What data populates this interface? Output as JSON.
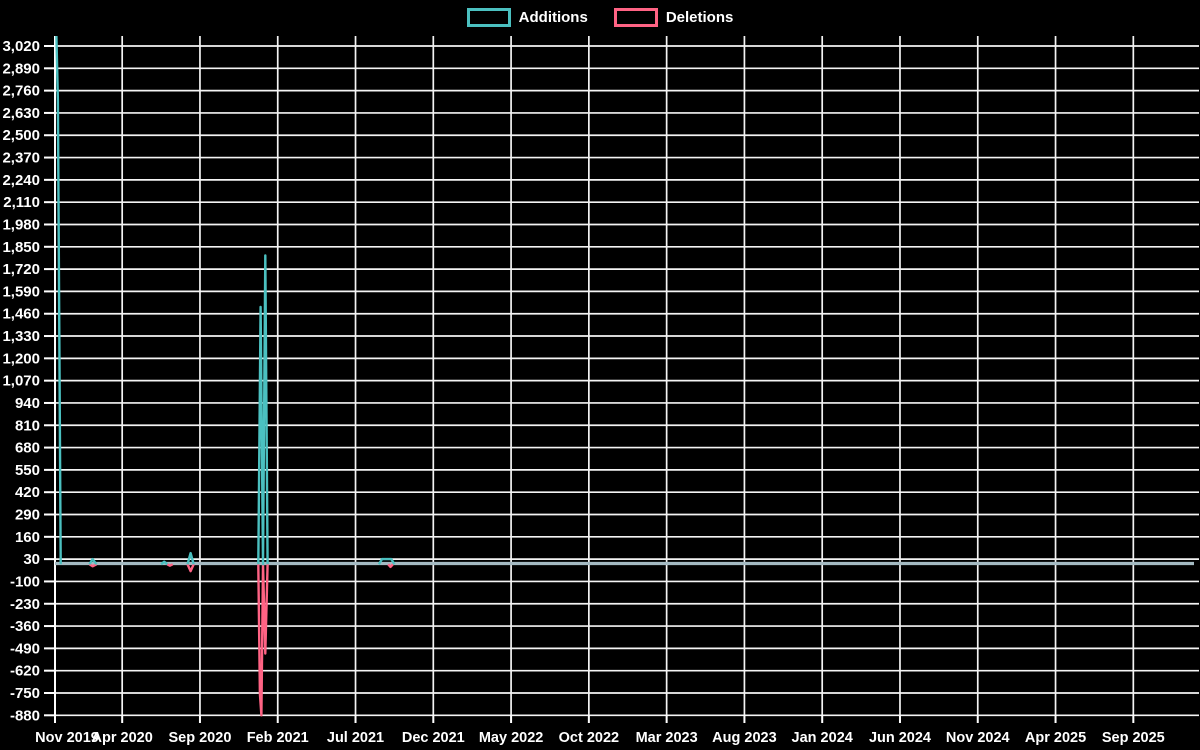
{
  "chart_data": {
    "type": "line",
    "title": "",
    "legend": [
      "Additions",
      "Deletions"
    ],
    "legend_position": "top",
    "background_color": "#000000",
    "grid": true,
    "grid_color": "#ffffff",
    "text_color": "#ffffff",
    "zero_line_color": "#a4bac2",
    "x_axis": {
      "unit": "months since Nov 2019",
      "ticks": [
        {
          "m": 0,
          "label": "Nov 2019"
        },
        {
          "m": 5,
          "label": "Apr 2020"
        },
        {
          "m": 10,
          "label": "Sep 2020"
        },
        {
          "m": 15,
          "label": "Feb 2021"
        },
        {
          "m": 20,
          "label": "Jul 2021"
        },
        {
          "m": 25,
          "label": "Dec 2021"
        },
        {
          "m": 30,
          "label": "May 2022"
        },
        {
          "m": 35,
          "label": "Oct 2022"
        },
        {
          "m": 40,
          "label": "Mar 2023"
        },
        {
          "m": 45,
          "label": "Aug 2023"
        },
        {
          "m": 50,
          "label": "Jan 2024"
        },
        {
          "m": 55,
          "label": "Jun 2024"
        },
        {
          "m": 60,
          "label": "Nov 2024"
        },
        {
          "m": 65,
          "label": "Apr 2025"
        },
        {
          "m": 70,
          "label": "Sep 2025"
        }
      ]
    },
    "y_axis": {
      "max_tick": 3020,
      "min_tick": -880,
      "step": 130,
      "plot_top_value": 3078,
      "ticks": [
        3020,
        2890,
        2760,
        2630,
        2500,
        2370,
        2240,
        2110,
        1980,
        1850,
        1720,
        1590,
        1460,
        1330,
        1200,
        1070,
        940,
        810,
        680,
        550,
        420,
        290,
        160,
        30,
        -100,
        -230,
        -360,
        -490,
        -620,
        -750,
        -880
      ]
    },
    "series": [
      {
        "name": "Additions",
        "color": "#4bc0c0",
        "baseline": 0,
        "spikes": [
          [
            [
              0.77,
              3078
            ],
            [
              0.87,
              2700
            ],
            [
              1.05,
              0
            ]
          ],
          [
            [
              2.9,
              0
            ],
            [
              3.1,
              30
            ],
            [
              3.35,
              0
            ]
          ],
          [
            [
              7.5,
              0
            ],
            [
              7.7,
              15
            ],
            [
              7.9,
              0
            ]
          ],
          [
            [
              9.2,
              0
            ],
            [
              9.4,
              65
            ],
            [
              9.6,
              0
            ]
          ],
          [
            [
              13.75,
              0
            ],
            [
              13.9,
              1500
            ],
            [
              14.05,
              0
            ],
            [
              14.2,
              1800
            ],
            [
              14.35,
              0
            ]
          ],
          [
            [
              21.5,
              0
            ],
            [
              21.7,
              30
            ],
            [
              22.3,
              30
            ],
            [
              22.5,
              0
            ]
          ]
        ]
      },
      {
        "name": "Deletions",
        "color": "#ff6384",
        "baseline": 0,
        "spikes": [
          [
            [
              2.9,
              0
            ],
            [
              3.1,
              -12
            ],
            [
              3.35,
              0
            ]
          ],
          [
            [
              7.9,
              0
            ],
            [
              8.07,
              -8
            ],
            [
              8.25,
              0
            ]
          ],
          [
            [
              9.2,
              0
            ],
            [
              9.4,
              -40
            ],
            [
              9.6,
              0
            ]
          ],
          [
            [
              13.75,
              0
            ],
            [
              13.85,
              -755
            ],
            [
              13.95,
              -880
            ],
            [
              14.05,
              0
            ],
            [
              14.2,
              -520
            ],
            [
              14.35,
              0
            ]
          ],
          [
            [
              22.1,
              0
            ],
            [
              22.25,
              -15
            ],
            [
              22.4,
              0
            ]
          ]
        ]
      }
    ]
  }
}
